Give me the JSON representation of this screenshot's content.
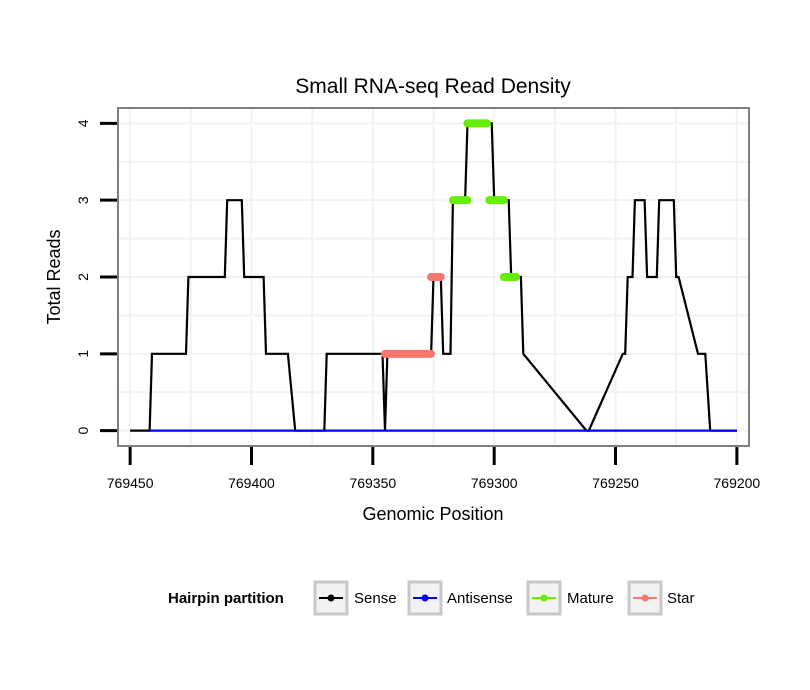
{
  "chart_data": {
    "type": "line",
    "title": "Small RNA-seq Read Density",
    "xlabel": "Genomic Position",
    "ylabel": "Total Reads",
    "xlim": [
      769455,
      769195
    ],
    "x_reversed": true,
    "ylim": [
      -0.2,
      4.2
    ],
    "x_ticks": [
      769450,
      769400,
      769350,
      769300,
      769250,
      769200
    ],
    "y_ticks": [
      0,
      1,
      2,
      3,
      4
    ],
    "x_tick_labels": [
      "769450",
      "769400",
      "769350",
      "769300",
      "769250",
      "769200"
    ],
    "y_tick_labels": [
      "0",
      "1",
      "2",
      "3",
      "4"
    ],
    "grid": true,
    "legend": {
      "title": "Hairpin partition",
      "placement": "bottom",
      "entries": [
        {
          "label": "Sense",
          "color": "#000000"
        },
        {
          "label": "Antisense",
          "color": "#0000ff"
        },
        {
          "label": "Mature",
          "color": "#66ee00"
        },
        {
          "label": "Star",
          "color": "#f8766d"
        }
      ]
    },
    "series": [
      {
        "name": "Sense",
        "color": "#000000",
        "x": [
          769450,
          769442,
          769441,
          769427,
          769426,
          769411,
          769410,
          769404,
          769403,
          769395,
          769394,
          769385,
          769382,
          769370,
          769369,
          769346,
          769345,
          769344,
          769326,
          769325,
          769322,
          769321,
          769318,
          769317,
          769312,
          769311,
          769306,
          769301,
          769300,
          769294,
          769293,
          769289,
          769288,
          769262,
          769261,
          769247,
          769246,
          769245,
          769243,
          769242,
          769238,
          769237,
          769233,
          769232,
          769226,
          769225,
          769224,
          769216,
          769215,
          769213,
          769211,
          769200
        ],
        "y": [
          0,
          0,
          1,
          1,
          2,
          2,
          3,
          3,
          2,
          2,
          1,
          1,
          0,
          0,
          1,
          1,
          0,
          1,
          1,
          2,
          2,
          1,
          1,
          3,
          3,
          4,
          4,
          4,
          3,
          3,
          2,
          2,
          1,
          0,
          0,
          1,
          1,
          2,
          2,
          3,
          3,
          2,
          2,
          3,
          3,
          2,
          2,
          1,
          1,
          1,
          0,
          0
        ]
      },
      {
        "name": "Antisense",
        "color": "#0000ff",
        "x": [
          769442,
          769200
        ],
        "y": [
          0,
          0
        ]
      }
    ],
    "segments": [
      {
        "name": "Star",
        "color": "#f8766d",
        "x": [
          769345,
          769326
        ],
        "y": 1
      },
      {
        "name": "Star",
        "color": "#f8766d",
        "x": [
          769326,
          769322
        ],
        "y": 2
      },
      {
        "name": "Mature",
        "color": "#66ee00",
        "x": [
          769317,
          769311
        ],
        "y": 3
      },
      {
        "name": "Mature",
        "color": "#66ee00",
        "x": [
          769311,
          769303
        ],
        "y": 4
      },
      {
        "name": "Mature",
        "color": "#66ee00",
        "x": [
          769302,
          769296
        ],
        "y": 3
      },
      {
        "name": "Mature",
        "color": "#66ee00",
        "x": [
          769296,
          769291
        ],
        "y": 2
      }
    ]
  }
}
